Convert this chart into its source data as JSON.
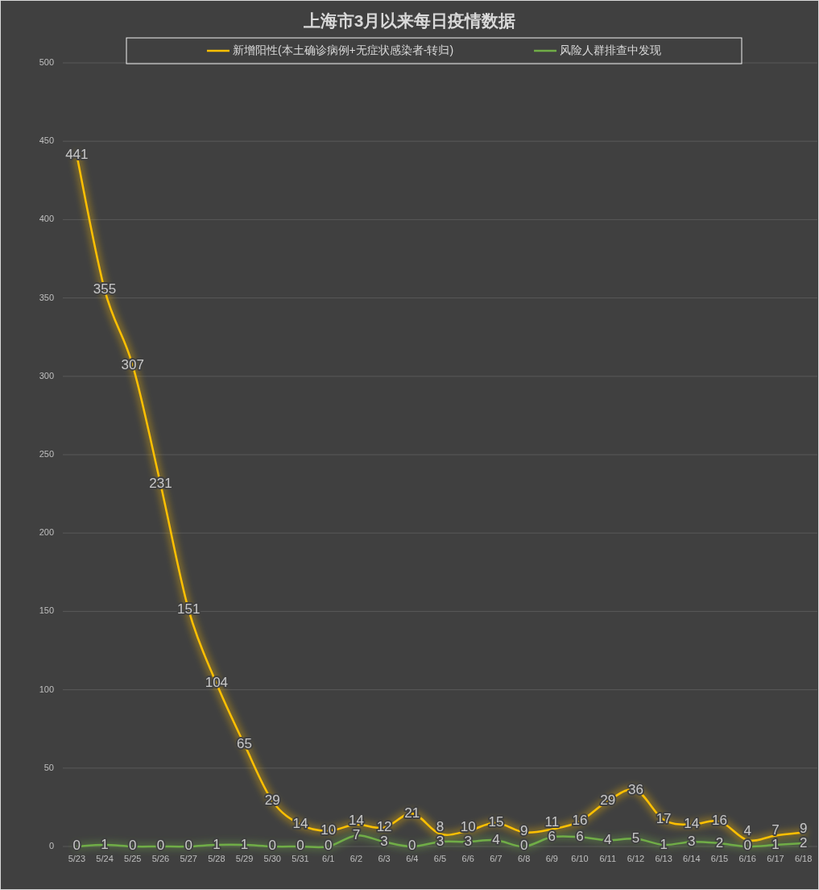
{
  "chart_data": {
    "type": "line",
    "title": "上海市3月以来每日疫情数据",
    "categories": [
      "5/23",
      "5/24",
      "5/25",
      "5/26",
      "5/27",
      "5/28",
      "5/29",
      "5/30",
      "5/31",
      "6/1",
      "6/2",
      "6/3",
      "6/4",
      "6/5",
      "6/6",
      "6/7",
      "6/8",
      "6/9",
      "6/10",
      "6/11",
      "6/12",
      "6/13",
      "6/14",
      "6/15",
      "6/16",
      "6/17",
      "6/18"
    ],
    "series": [
      {
        "name": "新增阳性(本土确诊病例+无症状感染者-转归)",
        "color": "#ffc000",
        "values": [
          441,
          355,
          307,
          231,
          151,
          104,
          65,
          29,
          14,
          10,
          14,
          12,
          21,
          8,
          10,
          15,
          9,
          11,
          16,
          29,
          36,
          17,
          14,
          16,
          4,
          7,
          9
        ]
      },
      {
        "name": "风险人群排查中发现",
        "color": "#70ad47",
        "values": [
          0,
          1,
          0,
          0,
          0,
          1,
          1,
          0,
          0,
          0,
          7,
          3,
          0,
          3,
          3,
          4,
          0,
          6,
          6,
          4,
          5,
          1,
          3,
          2,
          0,
          1,
          2
        ]
      }
    ],
    "ylim": [
      0,
      500
    ],
    "yticks": [
      0,
      50,
      100,
      150,
      200,
      250,
      300,
      350,
      400,
      450,
      500
    ],
    "grid": "y",
    "legend": "top",
    "data_labels": true,
    "line_style": "solid"
  }
}
